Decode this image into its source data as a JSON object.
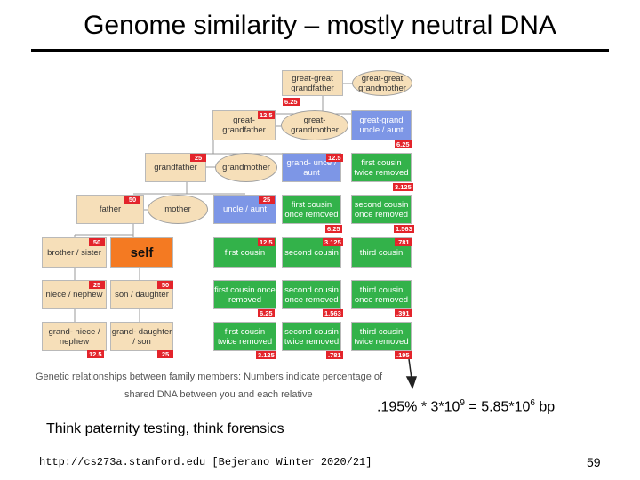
{
  "title": "Genome similarity – mostly neutral DNA",
  "diagram": {
    "nodes": [
      {
        "id": "ggf",
        "label": "great-great grandfather",
        "shape": "box",
        "color": "tan",
        "badge": "6.25"
      },
      {
        "id": "ggm",
        "label": "great-great grandmother",
        "shape": "oval",
        "color": "tan",
        "badge": ""
      },
      {
        "id": "gf2",
        "label": "great- grandfather",
        "shape": "box",
        "color": "tan",
        "badge": "12.5"
      },
      {
        "id": "gm2",
        "label": "great- grandmother",
        "shape": "oval",
        "color": "tan",
        "badge": ""
      },
      {
        "id": "ggua",
        "label": "great-grand uncle / aunt",
        "shape": "box",
        "color": "blue",
        "badge": "6.25"
      },
      {
        "id": "gf",
        "label": "grandfather",
        "shape": "box",
        "color": "tan",
        "badge": "25"
      },
      {
        "id": "gm",
        "label": "grandmother",
        "shape": "oval",
        "color": "tan",
        "badge": ""
      },
      {
        "id": "gua",
        "label": "grand- unce / aunt",
        "shape": "box",
        "color": "blue",
        "badge": "12.5"
      },
      {
        "id": "fc2r",
        "label": "first cousin twice removed",
        "shape": "box",
        "color": "green",
        "badge": "3.125"
      },
      {
        "id": "father",
        "label": "father",
        "shape": "box",
        "color": "tan",
        "badge": "50"
      },
      {
        "id": "mother",
        "label": "mother",
        "shape": "oval",
        "color": "tan",
        "badge": ""
      },
      {
        "id": "ua",
        "label": "uncle / aunt",
        "shape": "box",
        "color": "blue",
        "badge": "25"
      },
      {
        "id": "fc1r",
        "label": "first cousin once removed",
        "shape": "box",
        "color": "green",
        "badge": "6.25"
      },
      {
        "id": "sc1r",
        "label": "second cousin once removed",
        "shape": "box",
        "color": "green",
        "badge": "1.563"
      },
      {
        "id": "bs",
        "label": "brother / sister",
        "shape": "box",
        "color": "tan",
        "badge": "50"
      },
      {
        "id": "self",
        "label": "self",
        "shape": "box",
        "color": "orange",
        "badge": ""
      },
      {
        "id": "fc",
        "label": "first cousin",
        "shape": "box",
        "color": "green",
        "badge": "12.5"
      },
      {
        "id": "sc",
        "label": "second cousin",
        "shape": "box",
        "color": "green",
        "badge": "3.125"
      },
      {
        "id": "tc",
        "label": "third cousin",
        "shape": "box",
        "color": "green",
        "badge": ".781"
      },
      {
        "id": "nn",
        "label": "niece / nephew",
        "shape": "box",
        "color": "tan",
        "badge": "25"
      },
      {
        "id": "sd",
        "label": "son / daughter",
        "shape": "box",
        "color": "tan",
        "badge": "50"
      },
      {
        "id": "fc1rb",
        "label": "first cousin once removed",
        "shape": "box",
        "color": "green",
        "badge": "6.25"
      },
      {
        "id": "sc1rb",
        "label": "second cousin once removed",
        "shape": "box",
        "color": "green",
        "badge": "1.563"
      },
      {
        "id": "tc1r",
        "label": "third cousin once removed",
        "shape": "box",
        "color": "green",
        "badge": ".391"
      },
      {
        "id": "gnn",
        "label": "grand- niece / nephew",
        "shape": "box",
        "color": "tan",
        "badge": "12.5"
      },
      {
        "id": "gsd",
        "label": "grand- daughter / son",
        "shape": "box",
        "color": "tan",
        "badge": "25"
      },
      {
        "id": "fc2rb",
        "label": "first cousin twice removed",
        "shape": "box",
        "color": "green",
        "badge": "3.125"
      },
      {
        "id": "sc2r",
        "label": "second cousin twice removed",
        "shape": "box",
        "color": "green",
        "badge": ".781"
      },
      {
        "id": "tc2r",
        "label": "third cousin twice removed",
        "shape": "box",
        "color": "green",
        "badge": ".195"
      }
    ],
    "caption_line1": "Genetic relationships between family members: Numbers indicate percentage of",
    "caption_line2": "shared DNA between you and each relative"
  },
  "formula": {
    "prefix": ".195% * 3*10",
    "exp1": "9",
    "middle": " = 5.85*10",
    "exp2": "6",
    "suffix": " bp"
  },
  "note": "Think paternity testing, think forensics",
  "footer": {
    "url": "http://cs273a.stanford.edu [Bejerano Winter 2020/21]",
    "page": "59"
  },
  "colors": {
    "tan": "#f6dfb9",
    "blue": "#7d96e6",
    "green": "#33b24a",
    "orange": "#f47a22",
    "badge": "#e3242b"
  }
}
